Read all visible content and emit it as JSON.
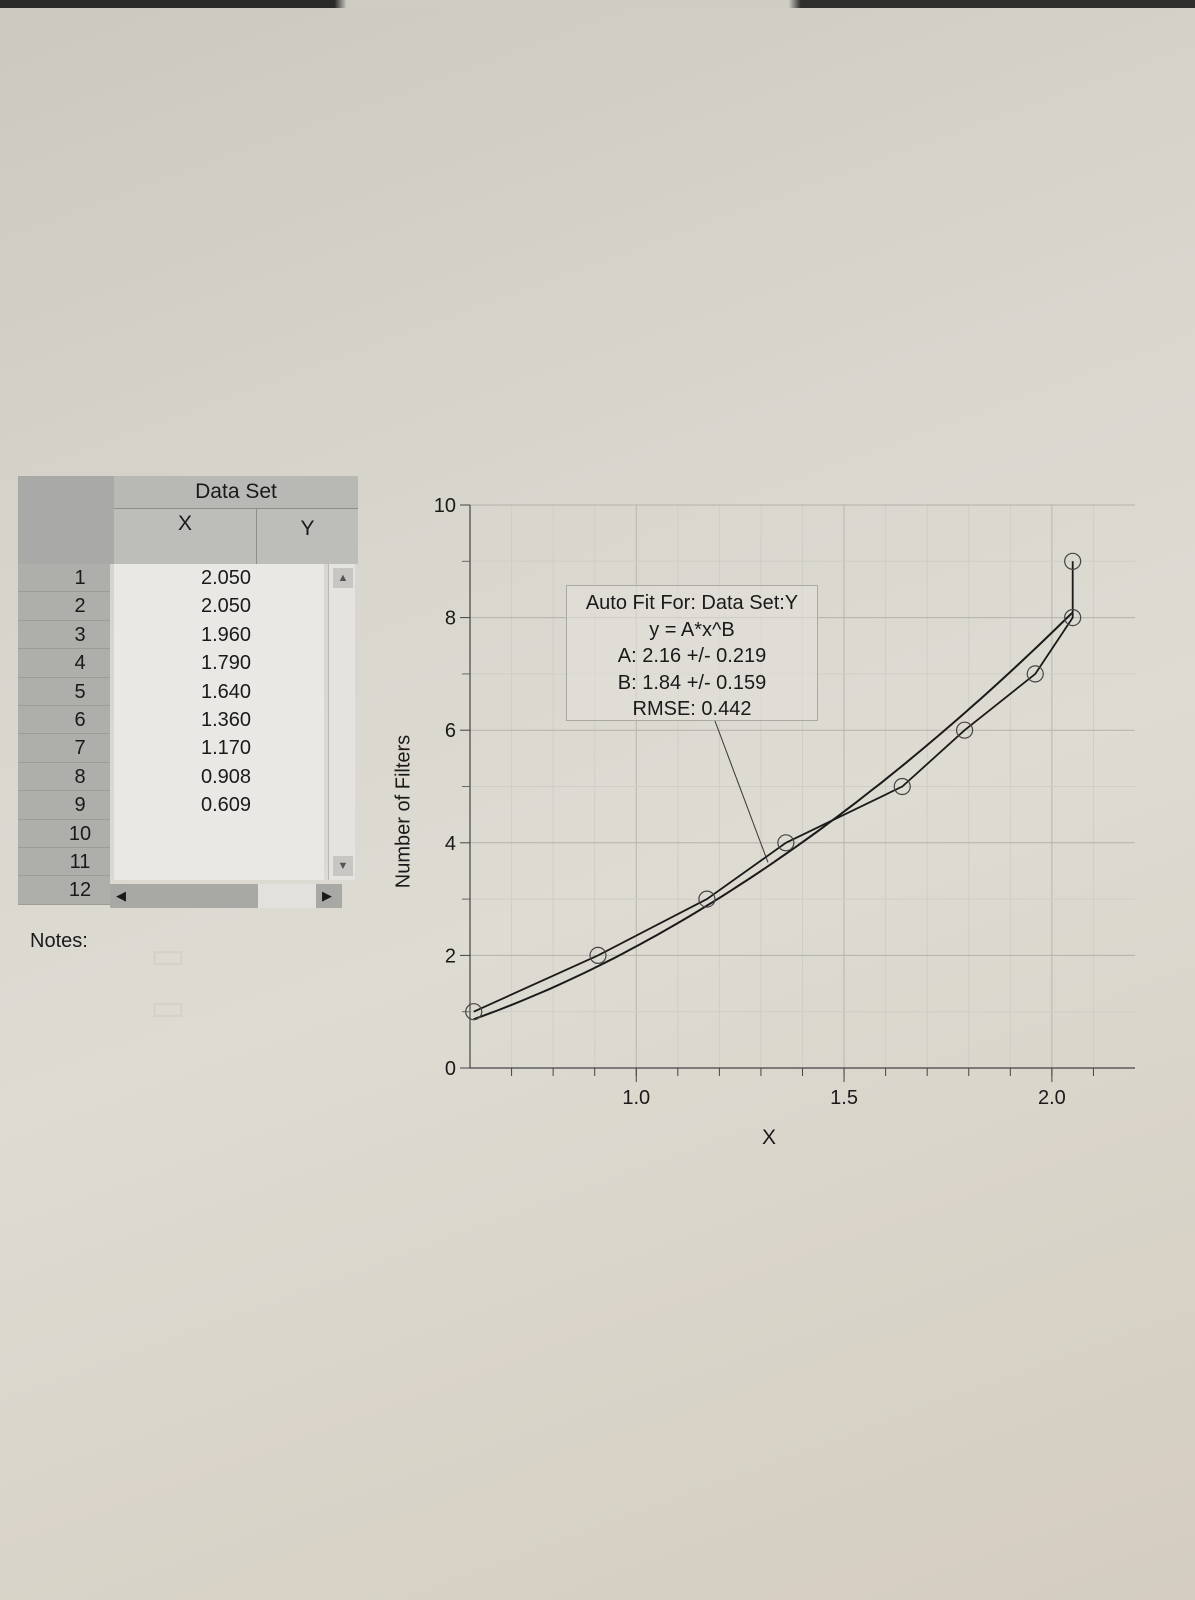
{
  "table": {
    "title": "Data Set",
    "col_x": "X",
    "col_y": "Y",
    "row_numbers": [
      "1",
      "2",
      "3",
      "4",
      "5",
      "6",
      "7",
      "8",
      "9",
      "10",
      "11",
      "12"
    ],
    "x_values": [
      "2.050",
      "2.050",
      "1.960",
      "1.790",
      "1.640",
      "1.360",
      "1.170",
      "0.908",
      "0.609",
      "",
      "",
      ""
    ]
  },
  "notes_label": "Notes:",
  "fit_box": {
    "line1": "Auto Fit For:  Data Set:Y",
    "line2": "y = A*x^B",
    "line3": "A: 2.16 +/- 0.219",
    "line4": "B: 1.84 +/- 0.159",
    "line5": "RMSE: 0.442"
  },
  "chart_data": {
    "type": "scatter",
    "xlabel": "X",
    "ylabel": "Number of Filters",
    "xlim": [
      0.6,
      2.2
    ],
    "ylim": [
      0,
      10
    ],
    "x_ticks": [
      "1.0",
      "1.5",
      "2.0"
    ],
    "y_ticks": [
      "0",
      "2",
      "4",
      "6",
      "8",
      "10"
    ],
    "grid": true,
    "series": [
      {
        "x": [
          0.609,
          0.908,
          1.17,
          1.36,
          1.64,
          1.79,
          1.96,
          2.05,
          2.05
        ],
        "y": [
          1,
          2,
          3,
          4,
          5,
          6,
          7,
          8,
          9
        ]
      }
    ],
    "fit": {
      "model": "y = A*x^B",
      "A": 2.16,
      "B": 1.84
    }
  }
}
